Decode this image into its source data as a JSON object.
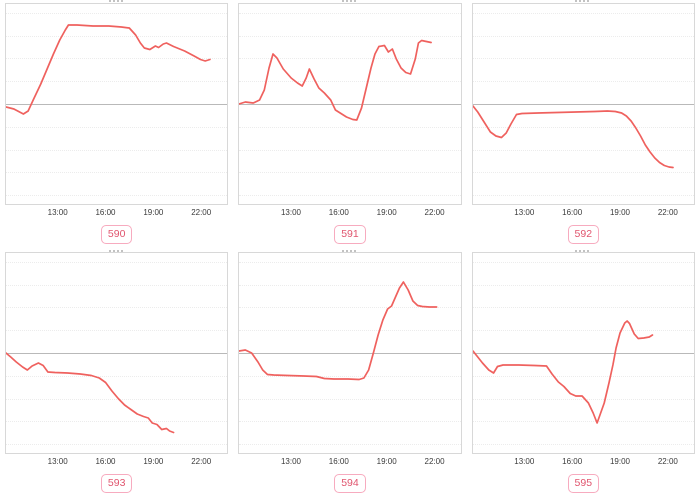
{
  "style": {
    "line_color": "#ef615e",
    "ref_line_color": "#b9b9b9",
    "grid_color": "#ececec",
    "plot_border_color": "#d8d8d8",
    "badge_border_color": "#f7abbf",
    "badge_text_color": "#e0556e",
    "badge_bg_color": "#ffffff",
    "tick_text_color": "#3a3a3a",
    "page_bg": "#ffffff"
  },
  "layout_hints": {
    "grid": "2 rows x 3 columns of line charts",
    "gridlines": "faint dotted horizontal lines, solid gray baseline at vertical center",
    "y_axis_labels": "none visible",
    "legend": "none",
    "titles": "chart titles cropped out of view; only pink id badges visible below each chart"
  },
  "chart_data": [
    {
      "type": "line",
      "title": "590",
      "xlabel": "",
      "ylabel": "",
      "x_ticks": [
        "13:00",
        "16:00",
        "19:00",
        "22:00"
      ],
      "x_tick_hours": [
        13,
        16,
        19,
        22
      ],
      "x_range_hours": [
        9.7,
        23.7
      ],
      "ylim": [
        -1,
        1
      ],
      "baseline": 0,
      "y_unit": "relative to gray baseline (baseline = 0, plot half-height = 1)",
      "series": [
        {
          "name": "590",
          "points": [
            [
              9.7,
              -0.03
            ],
            [
              10.2,
              -0.05
            ],
            [
              10.8,
              -0.1
            ],
            [
              11.1,
              -0.07
            ],
            [
              11.45,
              0.05
            ],
            [
              11.9,
              0.2
            ],
            [
              12.3,
              0.35
            ],
            [
              12.7,
              0.5
            ],
            [
              13.1,
              0.64
            ],
            [
              13.45,
              0.74
            ],
            [
              13.65,
              0.79
            ],
            [
              14.2,
              0.79
            ],
            [
              15.2,
              0.78
            ],
            [
              16.2,
              0.78
            ],
            [
              17.0,
              0.77
            ],
            [
              17.5,
              0.76
            ],
            [
              17.9,
              0.69
            ],
            [
              18.2,
              0.61
            ],
            [
              18.45,
              0.56
            ],
            [
              18.8,
              0.545
            ],
            [
              19.15,
              0.58
            ],
            [
              19.35,
              0.565
            ],
            [
              19.65,
              0.6
            ],
            [
              19.85,
              0.61
            ],
            [
              20.3,
              0.575
            ],
            [
              21.0,
              0.53
            ],
            [
              21.6,
              0.48
            ],
            [
              22.0,
              0.445
            ],
            [
              22.3,
              0.43
            ],
            [
              22.6,
              0.445
            ]
          ]
        }
      ]
    },
    {
      "type": "line",
      "title": "591",
      "xlabel": "",
      "ylabel": "",
      "x_ticks": [
        "13:00",
        "16:00",
        "19:00",
        "22:00"
      ],
      "x_tick_hours": [
        13,
        16,
        19,
        22
      ],
      "x_range_hours": [
        9.7,
        23.7
      ],
      "ylim": [
        -1,
        1
      ],
      "baseline": 0,
      "y_unit": "relative to gray baseline (baseline = 0, plot half-height = 1)",
      "series": [
        {
          "name": "591",
          "points": [
            [
              9.7,
              0.0
            ],
            [
              10.1,
              0.02
            ],
            [
              10.6,
              0.01
            ],
            [
              11.0,
              0.04
            ],
            [
              11.3,
              0.14
            ],
            [
              11.6,
              0.36
            ],
            [
              11.85,
              0.5
            ],
            [
              12.1,
              0.46
            ],
            [
              12.5,
              0.35
            ],
            [
              13.0,
              0.26
            ],
            [
              13.4,
              0.21
            ],
            [
              13.7,
              0.18
            ],
            [
              13.95,
              0.26
            ],
            [
              14.15,
              0.35
            ],
            [
              14.45,
              0.25
            ],
            [
              14.75,
              0.16
            ],
            [
              15.1,
              0.11
            ],
            [
              15.5,
              0.04
            ],
            [
              15.8,
              -0.06
            ],
            [
              16.1,
              -0.09
            ],
            [
              16.5,
              -0.13
            ],
            [
              16.9,
              -0.155
            ],
            [
              17.15,
              -0.16
            ],
            [
              17.45,
              -0.04
            ],
            [
              17.75,
              0.16
            ],
            [
              18.05,
              0.36
            ],
            [
              18.3,
              0.5
            ],
            [
              18.55,
              0.575
            ],
            [
              18.9,
              0.585
            ],
            [
              19.15,
              0.52
            ],
            [
              19.4,
              0.55
            ],
            [
              19.65,
              0.45
            ],
            [
              19.95,
              0.36
            ],
            [
              20.25,
              0.315
            ],
            [
              20.55,
              0.3
            ],
            [
              20.85,
              0.45
            ],
            [
              21.05,
              0.61
            ],
            [
              21.25,
              0.635
            ],
            [
              21.55,
              0.625
            ],
            [
              21.85,
              0.615
            ]
          ]
        }
      ]
    },
    {
      "type": "line",
      "title": "592",
      "xlabel": "",
      "ylabel": "",
      "x_ticks": [
        "13:00",
        "16:00",
        "19:00",
        "22:00"
      ],
      "x_tick_hours": [
        13,
        16,
        19,
        22
      ],
      "x_range_hours": [
        9.7,
        23.7
      ],
      "ylim": [
        -1,
        1
      ],
      "baseline": 0,
      "y_unit": "relative to gray baseline (baseline = 0, plot half-height = 1)",
      "series": [
        {
          "name": "592",
          "points": [
            [
              9.7,
              -0.02
            ],
            [
              10.0,
              -0.08
            ],
            [
              10.4,
              -0.18
            ],
            [
              10.8,
              -0.28
            ],
            [
              11.15,
              -0.32
            ],
            [
              11.5,
              -0.335
            ],
            [
              11.8,
              -0.29
            ],
            [
              12.1,
              -0.2
            ],
            [
              12.45,
              -0.105
            ],
            [
              12.8,
              -0.095
            ],
            [
              13.8,
              -0.09
            ],
            [
              15.0,
              -0.085
            ],
            [
              16.2,
              -0.08
            ],
            [
              17.4,
              -0.075
            ],
            [
              18.2,
              -0.07
            ],
            [
              18.7,
              -0.075
            ],
            [
              19.1,
              -0.09
            ],
            [
              19.4,
              -0.12
            ],
            [
              19.7,
              -0.17
            ],
            [
              20.0,
              -0.24
            ],
            [
              20.3,
              -0.32
            ],
            [
              20.6,
              -0.41
            ],
            [
              20.9,
              -0.48
            ],
            [
              21.2,
              -0.54
            ],
            [
              21.5,
              -0.585
            ],
            [
              21.8,
              -0.615
            ],
            [
              22.1,
              -0.63
            ],
            [
              22.35,
              -0.635
            ]
          ]
        }
      ]
    },
    {
      "type": "line",
      "title": "593",
      "xlabel": "",
      "ylabel": "",
      "x_ticks": [
        "13:00",
        "16:00",
        "19:00",
        "22:00"
      ],
      "x_tick_hours": [
        13,
        16,
        19,
        22
      ],
      "x_range_hours": [
        9.7,
        23.7
      ],
      "ylim": [
        -1,
        1
      ],
      "baseline": 0,
      "y_unit": "relative to gray baseline (baseline = 0, plot half-height = 1)",
      "series": [
        {
          "name": "593",
          "points": [
            [
              9.7,
              0.0
            ],
            [
              10.0,
              -0.04
            ],
            [
              10.35,
              -0.09
            ],
            [
              10.75,
              -0.14
            ],
            [
              11.05,
              -0.17
            ],
            [
              11.35,
              -0.13
            ],
            [
              11.75,
              -0.1
            ],
            [
              12.05,
              -0.125
            ],
            [
              12.35,
              -0.19
            ],
            [
              12.8,
              -0.195
            ],
            [
              13.6,
              -0.2
            ],
            [
              14.4,
              -0.21
            ],
            [
              15.1,
              -0.225
            ],
            [
              15.6,
              -0.25
            ],
            [
              16.0,
              -0.295
            ],
            [
              16.4,
              -0.38
            ],
            [
              16.8,
              -0.455
            ],
            [
              17.2,
              -0.52
            ],
            [
              17.6,
              -0.565
            ],
            [
              18.0,
              -0.61
            ],
            [
              18.4,
              -0.635
            ],
            [
              18.7,
              -0.65
            ],
            [
              18.95,
              -0.7
            ],
            [
              19.25,
              -0.715
            ],
            [
              19.55,
              -0.765
            ],
            [
              19.85,
              -0.755
            ],
            [
              20.05,
              -0.78
            ],
            [
              20.3,
              -0.795
            ]
          ]
        }
      ]
    },
    {
      "type": "line",
      "title": "594",
      "xlabel": "",
      "ylabel": "",
      "x_ticks": [
        "13:00",
        "16:00",
        "19:00",
        "22:00"
      ],
      "x_tick_hours": [
        13,
        16,
        19,
        22
      ],
      "x_range_hours": [
        9.7,
        23.7
      ],
      "ylim": [
        -1,
        1
      ],
      "baseline": 0,
      "y_unit": "relative to gray baseline (baseline = 0, plot half-height = 1)",
      "series": [
        {
          "name": "594",
          "points": [
            [
              9.7,
              0.02
            ],
            [
              10.1,
              0.03
            ],
            [
              10.5,
              0.0
            ],
            [
              10.9,
              -0.09
            ],
            [
              11.2,
              -0.17
            ],
            [
              11.5,
              -0.215
            ],
            [
              11.9,
              -0.22
            ],
            [
              12.8,
              -0.225
            ],
            [
              13.8,
              -0.23
            ],
            [
              14.6,
              -0.235
            ],
            [
              15.1,
              -0.255
            ],
            [
              15.7,
              -0.26
            ],
            [
              16.6,
              -0.26
            ],
            [
              17.3,
              -0.265
            ],
            [
              17.6,
              -0.25
            ],
            [
              17.9,
              -0.17
            ],
            [
              18.2,
              0.0
            ],
            [
              18.5,
              0.18
            ],
            [
              18.8,
              0.33
            ],
            [
              19.1,
              0.44
            ],
            [
              19.35,
              0.47
            ],
            [
              19.6,
              0.56
            ],
            [
              19.85,
              0.65
            ],
            [
              20.1,
              0.71
            ],
            [
              20.4,
              0.63
            ],
            [
              20.7,
              0.52
            ],
            [
              21.0,
              0.475
            ],
            [
              21.3,
              0.465
            ],
            [
              21.75,
              0.46
            ],
            [
              22.2,
              0.46
            ]
          ]
        }
      ]
    },
    {
      "type": "line",
      "title": "595",
      "xlabel": "",
      "ylabel": "",
      "x_ticks": [
        "13:00",
        "16:00",
        "19:00",
        "22:00"
      ],
      "x_tick_hours": [
        13,
        16,
        19,
        22
      ],
      "x_range_hours": [
        9.7,
        23.7
      ],
      "ylim": [
        -1,
        1
      ],
      "baseline": 0,
      "y_unit": "relative to gray baseline (baseline = 0, plot half-height = 1)",
      "series": [
        {
          "name": "595",
          "points": [
            [
              9.7,
              0.02
            ],
            [
              9.95,
              -0.03
            ],
            [
              10.3,
              -0.1
            ],
            [
              10.7,
              -0.17
            ],
            [
              11.0,
              -0.2
            ],
            [
              11.25,
              -0.135
            ],
            [
              11.6,
              -0.12
            ],
            [
              12.6,
              -0.12
            ],
            [
              13.6,
              -0.125
            ],
            [
              14.35,
              -0.13
            ],
            [
              14.7,
              -0.21
            ],
            [
              15.1,
              -0.29
            ],
            [
              15.45,
              -0.335
            ],
            [
              15.85,
              -0.405
            ],
            [
              16.2,
              -0.43
            ],
            [
              16.6,
              -0.43
            ],
            [
              17.0,
              -0.5
            ],
            [
              17.3,
              -0.6
            ],
            [
              17.55,
              -0.7
            ],
            [
              18.0,
              -0.5
            ],
            [
              18.3,
              -0.3
            ],
            [
              18.55,
              -0.12
            ],
            [
              18.75,
              0.05
            ],
            [
              19.0,
              0.2
            ],
            [
              19.3,
              0.3
            ],
            [
              19.45,
              0.32
            ],
            [
              19.6,
              0.295
            ],
            [
              19.9,
              0.19
            ],
            [
              20.15,
              0.145
            ],
            [
              20.5,
              0.15
            ],
            [
              20.85,
              0.16
            ],
            [
              21.05,
              0.18
            ]
          ]
        }
      ]
    }
  ]
}
